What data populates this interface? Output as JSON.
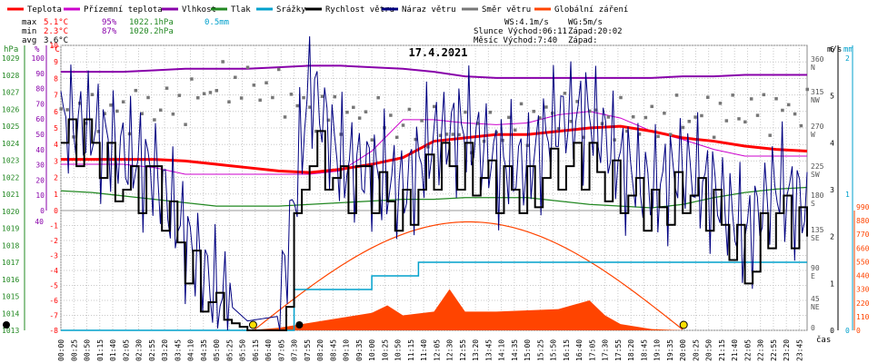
{
  "legend": [
    {
      "label": "Teplota",
      "color": "#ff0000"
    },
    {
      "label": "Přízemní teplota",
      "color": "#cc00cc"
    },
    {
      "label": "Vlhkost",
      "color": "#8800aa"
    },
    {
      "label": "Tlak",
      "color": "#228822"
    },
    {
      "label": "Srážky",
      "color": "#00a0cc"
    },
    {
      "label": "Rychlost větru",
      "color": "#000000"
    },
    {
      "label": "Náraz větru",
      "color": "#000080"
    },
    {
      "label": "Směr větru",
      "color": "#777777"
    },
    {
      "label": "Globální záření",
      "color": "#ff4400"
    }
  ],
  "stats": {
    "max_label": "max",
    "max_temp": "5.1°C",
    "max_hum": "95%",
    "max_press": "1022.1hPa",
    "max_rain": "0.5mm",
    "min_label": "min",
    "min_temp": "2.3°C",
    "min_hum": "87%",
    "min_press": "1020.2hPa",
    "avg_label": "avg",
    "avg_temp": "3.6°C"
  },
  "astro": {
    "ws": "WS:4.1m/s",
    "wg": "WG:5m/s",
    "sun": "Slunce Východ:06:11",
    "sun_set": "Západ:20:02",
    "moon": "Měsíc  Východ:7:40",
    "moon_set": "Západ:"
  },
  "chart_data": {
    "type": "line",
    "title": "17.4.2021",
    "xlabel": "čas",
    "x_ticks": [
      "00:00",
      "00:25",
      "00:50",
      "01:15",
      "01:40",
      "02:05",
      "02:30",
      "02:55",
      "03:20",
      "03:45",
      "04:10",
      "04:35",
      "05:00",
      "05:25",
      "05:50",
      "06:15",
      "06:40",
      "07:05",
      "07:30",
      "07:55",
      "08:20",
      "08:45",
      "09:10",
      "09:35",
      "10:00",
      "10:25",
      "10:50",
      "11:15",
      "11:40",
      "12:05",
      "12:30",
      "12:55",
      "13:20",
      "13:45",
      "14:10",
      "14:35",
      "15:00",
      "15:25",
      "15:50",
      "16:15",
      "16:40",
      "17:05",
      "17:30",
      "17:55",
      "18:20",
      "18:45",
      "19:10",
      "19:35",
      "20:00",
      "20:25",
      "20:50",
      "21:15",
      "21:40",
      "22:05",
      "22:30",
      "22:55",
      "23:20",
      "23:45"
    ],
    "axes": {
      "pressure_hpa": {
        "label": "hPa",
        "ticks": [
          "1029",
          "1028",
          "1027",
          "1026",
          "1025",
          "1024",
          "1023",
          "1022",
          "1021",
          "1020",
          "1019",
          "1018",
          "1017",
          "1016",
          "1015",
          "1014",
          "1013"
        ],
        "range": [
          1013,
          1029
        ]
      },
      "humidity_pct": {
        "label": "%",
        "ticks": [
          "100",
          "90",
          "80",
          "70",
          "60",
          "50",
          "40",
          "30",
          "20",
          "10",
          "0"
        ],
        "range": [
          0,
          100
        ]
      },
      "temp_upper_c": {
        "label": "°C",
        "ticks": [
          "10",
          "9",
          "8",
          "7",
          "6",
          "5",
          "4",
          "3",
          "2",
          "1",
          "0"
        ],
        "range": [
          0,
          10
        ]
      },
      "temp_lower_c": {
        "ticks": [
          "-1",
          "-2",
          "-3",
          "-4",
          "-5",
          "-6",
          "-7",
          "-8"
        ],
        "range": [
          -8,
          0
        ]
      },
      "wind_dir": {
        "ticks": [
          "360 N",
          "315 NW",
          "270 W",
          "225 SW",
          "180 S",
          "135 SE",
          "90 E",
          "45 NE",
          "0"
        ],
        "range": [
          0,
          360
        ]
      },
      "wind_speed_ms": {
        "label": "m/s",
        "ticks": [
          "6",
          "5",
          "4",
          "3",
          "2",
          "1",
          "0"
        ],
        "range": [
          0,
          6
        ]
      },
      "rain_mm": {
        "label": "mm",
        "ticks": [
          "2",
          "1",
          "0"
        ],
        "range": [
          0,
          2
        ]
      },
      "radiation_wm2": {
        "ticks": [
          "990",
          "880",
          "770",
          "660",
          "550",
          "440",
          "330",
          "220",
          "110",
          "0"
        ],
        "range": [
          0,
          990
        ]
      }
    },
    "series": [
      {
        "name": "Teplota",
        "unit": "°C",
        "x": [
          0,
          1,
          2,
          3,
          4,
          5,
          6,
          7,
          8,
          9,
          10,
          11,
          12,
          13,
          14,
          15,
          16,
          17,
          18,
          19,
          20,
          21,
          22,
          23,
          24
        ],
        "values": [
          3.1,
          3.1,
          3.1,
          3.1,
          3.0,
          2.8,
          2.6,
          2.4,
          2.3,
          2.5,
          2.8,
          3.2,
          4.2,
          4.4,
          4.6,
          4.6,
          4.8,
          5.0,
          5.1,
          4.8,
          4.4,
          4.2,
          3.9,
          3.7,
          3.6
        ]
      },
      {
        "name": "Přízemní teplota",
        "unit": "°C",
        "x": [
          0,
          1,
          2,
          3,
          4,
          5,
          6,
          7,
          8,
          9,
          10,
          11,
          12,
          13,
          14,
          15,
          16,
          17,
          18,
          19,
          20,
          21,
          22,
          23,
          24
        ],
        "values": [
          2.8,
          2.8,
          2.8,
          2.6,
          2.2,
          2.2,
          2.2,
          2.2,
          2.2,
          2.4,
          3.6,
          5.5,
          5.5,
          5.3,
          5.2,
          5.3,
          5.8,
          6.0,
          5.6,
          4.8,
          4.3,
          3.7,
          3.3,
          3.3,
          3.3
        ]
      },
      {
        "name": "Vlhkost",
        "unit": "%",
        "x": [
          0,
          1,
          2,
          3,
          4,
          5,
          6,
          7,
          8,
          9,
          10,
          11,
          12,
          13,
          14,
          15,
          16,
          17,
          18,
          19,
          20,
          21,
          22,
          23,
          24
        ],
        "values": [
          91,
          91,
          91,
          92,
          93,
          93,
          93,
          94,
          95,
          95,
          94,
          93,
          91,
          88,
          87,
          87,
          87,
          87,
          87,
          87,
          88,
          88,
          89,
          89,
          89
        ]
      },
      {
        "name": "Tlak",
        "unit": "hPa",
        "x": [
          0,
          1,
          2,
          3,
          4,
          5,
          6,
          7,
          8,
          9,
          10,
          11,
          12,
          13,
          14,
          15,
          16,
          17,
          18,
          19,
          20,
          21,
          22,
          23,
          24
        ],
        "values": [
          1021.2,
          1021.1,
          1020.9,
          1020.7,
          1020.5,
          1020.3,
          1020.3,
          1020.3,
          1020.4,
          1020.5,
          1020.6,
          1020.7,
          1020.7,
          1020.8,
          1020.8,
          1020.8,
          1020.6,
          1020.4,
          1020.3,
          1020.2,
          1020.4,
          1020.8,
          1021.1,
          1021.3,
          1021.4
        ]
      },
      {
        "name": "Srážky",
        "unit": "mm",
        "x": [
          0,
          7,
          7.5,
          9.5,
          10,
          11,
          11.5,
          24
        ],
        "values": [
          0,
          0,
          0.3,
          0.3,
          0.4,
          0.4,
          0.5,
          0.5
        ]
      },
      {
        "name": "Rychlost větru",
        "unit": "m/s",
        "x": [
          0,
          1,
          2,
          3,
          4,
          5,
          6,
          7,
          8,
          9,
          10,
          11,
          12,
          13,
          14,
          15,
          16,
          17,
          18,
          19,
          20,
          21,
          22,
          23,
          24
        ],
        "values": [
          4.0,
          4.0,
          3.0,
          3.0,
          1.5,
          0.3,
          0,
          0,
          4.0,
          3.0,
          3.0,
          2.5,
          3.5,
          3.5,
          3.0,
          3.0,
          3.5,
          3.5,
          3.0,
          2.5,
          3.0,
          2.5,
          1.5,
          2.5,
          2.0
        ]
      },
      {
        "name": "Náraz větru",
        "unit": "m/s",
        "x": [
          0,
          1,
          2,
          3,
          4,
          5,
          6,
          7,
          8,
          9,
          10,
          11,
          12,
          13,
          14,
          15,
          16,
          17,
          18,
          19,
          20,
          21,
          22,
          23,
          24
        ],
        "values": [
          4.5,
          4.3,
          3.8,
          3.4,
          2.0,
          0.8,
          0.2,
          0.3,
          5.3,
          3.6,
          3.4,
          3.0,
          4.1,
          4.3,
          3.6,
          3.5,
          4.5,
          4.6,
          3.6,
          3.0,
          3.5,
          3.0,
          2.0,
          3.1,
          2.6
        ]
      },
      {
        "name": "Směr větru",
        "unit": "°",
        "x": [
          0,
          1,
          2,
          3,
          4,
          5,
          6,
          7,
          8,
          9,
          10,
          11,
          12,
          13,
          14,
          15,
          16,
          17,
          18,
          19,
          20,
          21,
          22,
          23,
          24
        ],
        "values": [
          285,
          290,
          295,
          300,
          305,
          330,
          330,
          320,
          295,
          290,
          285,
          275,
          270,
          265,
          270,
          280,
          295,
          285,
          280,
          280,
          285,
          290,
          295,
          295,
          295
        ]
      },
      {
        "name": "Globální záření",
        "unit": "W/m²",
        "x": [
          6,
          7,
          8,
          9,
          10,
          10.5,
          11,
          12,
          12.5,
          13,
          14,
          15,
          16,
          17,
          17.5,
          18,
          19,
          20
        ],
        "values": [
          0,
          20,
          60,
          100,
          140,
          200,
          120,
          150,
          330,
          150,
          150,
          160,
          170,
          240,
          120,
          50,
          10,
          0
        ]
      }
    ],
    "theoretical_radiation": {
      "sunrise_h": 6.2,
      "sunset_h": 20.03,
      "peak": 870
    }
  }
}
